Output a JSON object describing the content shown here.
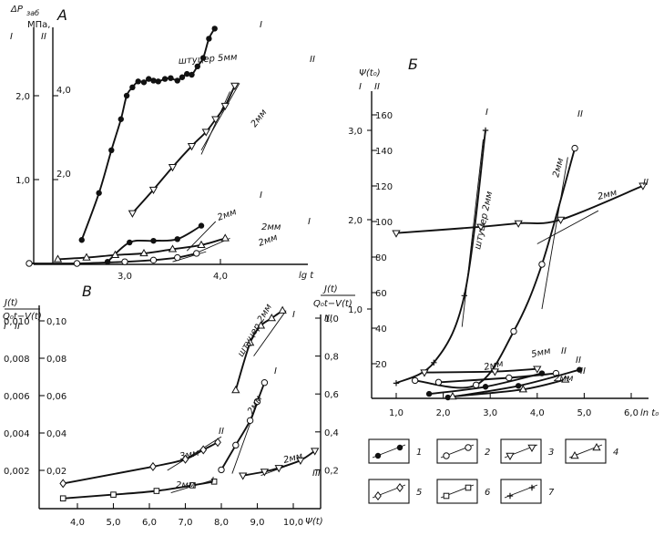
{
  "chart_data": [
    {
      "panel": "A",
      "type": "scatter",
      "ylabel_top": "ΔP",
      "ylabel_sub": "заб",
      "yunit": "МПа,",
      "yaxis_ids": [
        "I",
        "II"
      ],
      "y_ticks_I": [
        "1,0",
        "2,0"
      ],
      "y_ticks_II": [
        "2,0",
        "4,0"
      ],
      "x_ticks": [
        "3,0",
        "4,0"
      ],
      "xlabel": "lg t",
      "annotations": [
        "штуцер 5мм",
        "2мм",
        "2мм",
        "2мм",
        "2мм"
      ],
      "series": [
        {
          "curve": "I",
          "label": "штуцер 5мм",
          "marker": 1,
          "x": [
            2.55,
            2.73,
            2.86,
            2.96,
            3.02,
            3.08,
            3.14,
            3.2,
            3.25,
            3.3,
            3.35,
            3.42,
            3.48,
            3.55,
            3.6,
            3.65,
            3.7,
            3.76,
            3.82,
            3.88,
            3.94
          ],
          "y": [
            0.28,
            0.84,
            1.35,
            1.72,
            2.0,
            2.1,
            2.17,
            2.16,
            2.2,
            2.18,
            2.17,
            2.2,
            2.21,
            2.18,
            2.22,
            2.26,
            2.25,
            2.35,
            2.45,
            2.68,
            2.8
          ]
        },
        {
          "curve": "II",
          "label": "2мм",
          "marker": 3,
          "x": [
            3.08,
            3.3,
            3.5,
            3.7,
            3.85,
            3.95,
            4.05,
            4.15
          ],
          "y": [
            0.6,
            0.88,
            1.15,
            1.4,
            1.57,
            1.72,
            1.88,
            2.12
          ]
        },
        {
          "curve": "I",
          "label": "2мм",
          "marker": 1,
          "x": [
            2.82,
            3.05,
            3.3,
            3.55,
            3.8
          ],
          "y": [
            0.02,
            0.25,
            0.27,
            0.29,
            0.45
          ]
        },
        {
          "curve": "I",
          "label": "2мм",
          "marker": 4,
          "x": [
            2.3,
            2.6,
            2.9,
            3.2,
            3.5,
            3.8,
            4.05
          ],
          "y": [
            0.05,
            0.07,
            0.1,
            0.12,
            0.17,
            0.22,
            0.3
          ]
        },
        {
          "curve": "I",
          "label": "2мм",
          "marker": 2,
          "x": [
            2.0,
            2.5,
            3.0,
            3.3,
            3.55,
            3.75
          ],
          "y": [
            0.0,
            0.0,
            0.02,
            0.04,
            0.07,
            0.12
          ]
        }
      ]
    },
    {
      "panel": "Б",
      "type": "scatter",
      "ylabel": "Ψ(t₀)",
      "yaxis_ids": [
        "I",
        "II"
      ],
      "y_ticks_I": [
        "1,0",
        "2,0",
        "3,0"
      ],
      "y_ticks_II": [
        "20",
        "40",
        "60",
        "80",
        "100",
        "120",
        "140",
        "160"
      ],
      "x_ticks": [
        "1,0",
        "2,0",
        "3,0",
        "4,0",
        "5,0",
        "6,0"
      ],
      "xlabel": "ln t₀",
      "annotations": [
        "штуцер 2мм",
        "2мм",
        "2мм",
        "2мм",
        "5мм",
        "2мм"
      ],
      "series": [
        {
          "curve": "I",
          "label": "штуцер 2мм",
          "marker": 7,
          "x": [
            1.0,
            1.8,
            2.45,
            2.9
          ],
          "y": [
            0.17,
            0.4,
            1.15,
            3.0
          ]
        },
        {
          "curve": "II",
          "label": "2мм",
          "marker": 2,
          "x": [
            1.4,
            2.7,
            3.5,
            4.1,
            4.8
          ],
          "y": [
            0.2,
            0.15,
            0.75,
            1.5,
            2.8
          ]
        },
        {
          "curve": "II",
          "label": "2мм",
          "marker": 3,
          "x": [
            1.0,
            2.8,
            3.6,
            4.5,
            6.25
          ],
          "y": [
            1.85,
            1.92,
            1.96,
            2.0,
            2.38
          ]
        }
      ]
    },
    {
      "panel": "В",
      "type": "scatter",
      "ylabel_left_num": "J(t)",
      "ylabel_left_den": "Q₀t−V(t)",
      "ylabel_right_num": "J(t)",
      "ylabel_right_den": "Q₀t−V(t)",
      "yaxis_ids": [
        "I",
        "II",
        "III"
      ],
      "y_ticks_I": [
        "0,002",
        "0,004",
        "0,006",
        "0,008",
        "0,010"
      ],
      "y_ticks_II": [
        "0,02",
        "0,04",
        "0,06",
        "0,08",
        "0,10"
      ],
      "y_ticks_III": [
        "0,2",
        "0,4",
        "0,6",
        "0,8",
        "1,0"
      ],
      "x_ticks": [
        "4,0",
        "5,0",
        "6,0",
        "7,0",
        "8,0",
        "9,0",
        "10,0"
      ],
      "xlabel": "Ψ(t)",
      "annotations": [
        "штуцер 2мм",
        "2мм",
        "3мм",
        "2мм",
        "2мм"
      ],
      "series": [
        {
          "curve": "I",
          "label": "штуцер 2мм",
          "marker": 4,
          "x": [
            8.4,
            8.8,
            9.1,
            9.4,
            9.7
          ],
          "y": [
            0.62,
            0.87,
            0.96,
            1.0,
            1.04
          ]
        },
        {
          "curve": "I",
          "label": "2мм",
          "marker": 2,
          "x": [
            8.0,
            8.4,
            8.8,
            9.0,
            9.2
          ],
          "y": [
            0.2,
            0.33,
            0.46,
            0.56,
            0.66
          ]
        },
        {
          "curve": "II",
          "label": "3мм",
          "marker": 5,
          "x": [
            3.6,
            6.1,
            7.0,
            7.5,
            7.9
          ],
          "y": [
            0.013,
            0.022,
            0.026,
            0.031,
            0.035
          ]
        },
        {
          "curve": "I",
          "label": "2мм",
          "marker": 6,
          "x": [
            3.6,
            5.0,
            6.2,
            7.2,
            7.8
          ],
          "y": [
            0.005,
            0.007,
            0.009,
            0.012,
            0.014
          ]
        },
        {
          "curve": "III",
          "label": "2мм",
          "marker": 3,
          "x": [
            8.6,
            9.2,
            9.6,
            10.2,
            10.6
          ],
          "y": [
            0.17,
            0.19,
            0.21,
            0.25,
            0.3
          ]
        }
      ]
    }
  ],
  "legend": [
    {
      "id": "1",
      "marker": "filled-circle"
    },
    {
      "id": "2",
      "marker": "open-circle"
    },
    {
      "id": "3",
      "marker": "triangle-down"
    },
    {
      "id": "4",
      "marker": "triangle-up"
    },
    {
      "id": "5",
      "marker": "diamond"
    },
    {
      "id": "6",
      "marker": "square"
    },
    {
      "id": "7",
      "marker": "plus"
    }
  ]
}
